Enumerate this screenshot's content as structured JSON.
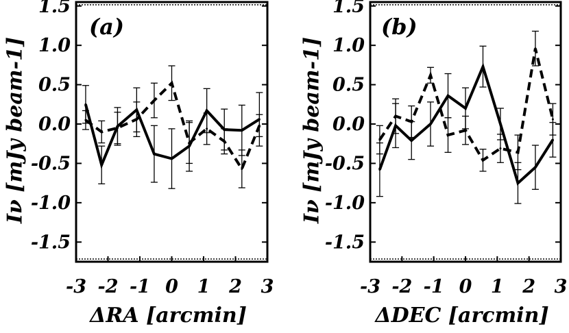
{
  "chart_data": [
    {
      "type": "line",
      "panel_label": "(a)",
      "xlabel": "ΔRA [arcmin]",
      "ylabel": "Iν [mJy beam-1]",
      "xlim": [
        -3,
        3
      ],
      "ylim": [
        -1.75,
        1.55
      ],
      "xticks": [
        "-3",
        "-2",
        "-1",
        "0",
        "1",
        "2",
        "3"
      ],
      "yticks": [
        "1.5",
        "1.0",
        "0.5",
        "0.0",
        "-0.5",
        "-1.0",
        "-1.5"
      ],
      "series": [
        {
          "name": "solid",
          "style": "solid",
          "x": [
            -2.7,
            -2.2,
            -1.7,
            -1.1,
            -0.55,
            0.0,
            0.55,
            1.1,
            1.65,
            2.2,
            2.75
          ],
          "y": [
            0.25,
            -0.52,
            -0.03,
            0.18,
            -0.38,
            -0.44,
            -0.28,
            0.17,
            -0.07,
            -0.08,
            0.06
          ],
          "err": [
            0.24,
            0.24,
            0.24,
            0.28,
            0.36,
            0.38,
            0.32,
            0.28,
            0.26,
            0.32,
            0.34
          ]
        },
        {
          "name": "dashed",
          "style": "dashed",
          "x": [
            -2.7,
            -2.2,
            -1.7,
            -1.1,
            -0.55,
            0.0,
            0.55,
            1.1,
            1.65,
            2.2,
            2.75
          ],
          "y": [
            0.05,
            -0.1,
            -0.05,
            0.06,
            0.3,
            0.52,
            -0.24,
            -0.06,
            -0.22,
            -0.57,
            -0.02
          ],
          "err": [
            0.12,
            0.14,
            0.2,
            0.22,
            0.22,
            0.22,
            0.26,
            0.2,
            0.16,
            0.24,
            0.14
          ]
        }
      ]
    },
    {
      "type": "line",
      "panel_label": "(b)",
      "xlabel": "ΔDEC [arcmin]",
      "ylabel": "Iν [mJy beam-1]",
      "xlim": [
        -3,
        3
      ],
      "ylim": [
        -1.75,
        1.55
      ],
      "xticks": [
        "-3",
        "-2",
        "-1",
        "0",
        "1",
        "2",
        "3"
      ],
      "yticks": [
        "1.5",
        "1.0",
        "0.5",
        "0.0",
        "-0.5",
        "-1.0",
        "-1.5"
      ],
      "series": [
        {
          "name": "solid",
          "style": "solid",
          "x": [
            -2.7,
            -2.2,
            -1.7,
            -1.1,
            -0.55,
            0.0,
            0.55,
            1.1,
            1.65,
            2.2,
            2.75
          ],
          "y": [
            -0.58,
            -0.02,
            -0.21,
            0.0,
            0.36,
            0.2,
            0.73,
            0.0,
            -0.75,
            -0.55,
            -0.2
          ],
          "err": [
            0.34,
            0.28,
            0.24,
            0.28,
            0.28,
            0.26,
            0.26,
            0.2,
            0.26,
            0.28,
            0.22
          ]
        },
        {
          "name": "dashed",
          "style": "dashed",
          "x": [
            -2.7,
            -2.2,
            -1.7,
            -1.1,
            -0.55,
            0.0,
            0.55,
            1.1,
            1.65,
            2.2,
            2.75
          ],
          "y": [
            -0.2,
            0.1,
            0.03,
            0.62,
            -0.14,
            -0.08,
            -0.46,
            -0.31,
            -0.36,
            0.96,
            0.06
          ],
          "err": [
            0.18,
            0.22,
            0.2,
            0.1,
            0.22,
            0.18,
            0.14,
            0.18,
            0.22,
            0.22,
            0.2
          ]
        }
      ]
    }
  ]
}
